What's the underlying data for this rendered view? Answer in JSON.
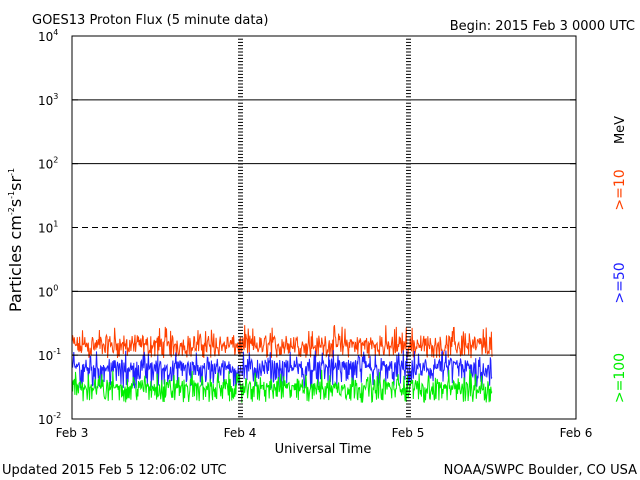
{
  "header": {
    "title": "GOES13 Proton Flux (5 minute data)",
    "begin": "Begin: 2015 Feb 3 0000 UTC"
  },
  "footer": {
    "updated": "Updated 2015 Feb  5 12:06:02 UTC",
    "source": "NOAA/SWPC Boulder, CO USA"
  },
  "chart_data": {
    "type": "line",
    "title": "GOES13 Proton Flux (5 minute data)",
    "xlabel": "Universal Time",
    "ylabel_parts": [
      "Particles cm",
      "-2",
      "s",
      "-1",
      "sr",
      "-1"
    ],
    "y_scale": "log",
    "ylim": [
      0.01,
      10000
    ],
    "y_ticks": [
      {
        "base": "10",
        "exp": "-2"
      },
      {
        "base": "10",
        "exp": "-1"
      },
      {
        "base": "10",
        "exp": "0"
      },
      {
        "base": "10",
        "exp": "1"
      },
      {
        "base": "10",
        "exp": "2"
      },
      {
        "base": "10",
        "exp": "3"
      },
      {
        "base": "10",
        "exp": "4"
      }
    ],
    "x_ticks": [
      "Feb 3",
      "Feb 4",
      "Feb 5",
      "Feb 6"
    ],
    "xlim_days": [
      0,
      3
    ],
    "data_end_day": 2.5,
    "threshold_lines": [
      0.1,
      1,
      10,
      100,
      1000
    ],
    "dashed_lines": [
      10
    ],
    "legend": {
      "unit": "MeV",
      "placement": "right"
    },
    "series": [
      {
        "name": ">=10",
        "color": "#ff4000",
        "typical": 0.13,
        "min": 0.09,
        "max": 0.3
      },
      {
        "name": ">=50",
        "color": "#2020ff",
        "typical": 0.055,
        "min": 0.03,
        "max": 0.12
      },
      {
        "name": ">=100",
        "color": "#00ee00",
        "typical": 0.028,
        "min": 0.018,
        "max": 0.06
      }
    ]
  }
}
